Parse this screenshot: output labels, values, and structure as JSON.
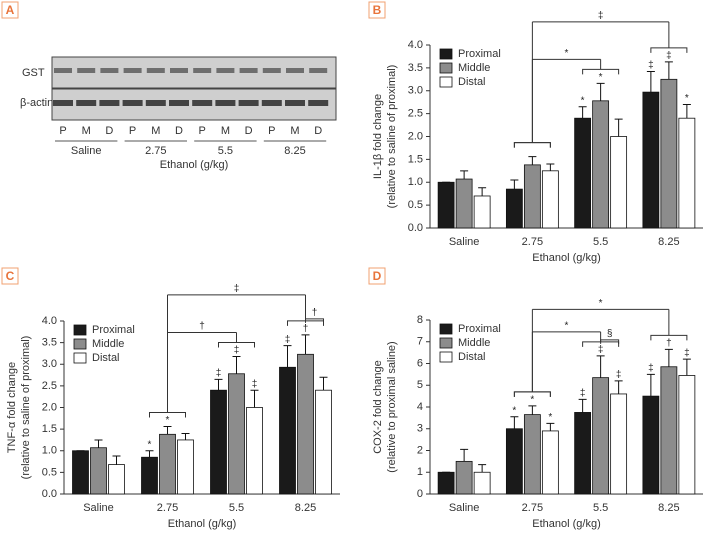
{
  "blot": {
    "panel": "A",
    "rows": [
      "GST",
      "β-actin"
    ],
    "lanes": [
      "P",
      "M",
      "D",
      "P",
      "M",
      "D",
      "P",
      "M",
      "D",
      "P",
      "M",
      "D"
    ],
    "groups": [
      "Saline",
      "2.75",
      "5.5",
      "8.25"
    ],
    "xlabel": "Ethanol (g/kg)"
  },
  "chart_data": [
    {
      "type": "bar",
      "panel": "B",
      "ylabel": [
        "IL-1β fold change",
        "(relative to saline of proximal)"
      ],
      "xlabel": "Ethanol (g/kg)",
      "categories": [
        "Saline",
        "2.75",
        "5.5",
        "8.25"
      ],
      "legend": "upper left",
      "ylim": [
        0,
        4
      ],
      "yticks": [
        {
          "value": 0,
          "label": "0.0"
        },
        0.5,
        {
          "value": 1,
          "label": "1.0"
        },
        1.5,
        {
          "value": 2,
          "label": "2.0"
        },
        2.5,
        {
          "value": 3,
          "label": "3.0"
        },
        3.5,
        {
          "value": 4,
          "label": "4.0"
        }
      ],
      "series": [
        {
          "name": "Proximal",
          "color": "#1a1a1a",
          "values": [
            1.0,
            0.85,
            2.4,
            2.97
          ],
          "errors": [
            0,
            0.2,
            0.25,
            0.45
          ],
          "annotations": [
            null,
            null,
            "*",
            "‡"
          ]
        },
        {
          "name": "Middle",
          "color": "#8c8c8c",
          "values": [
            1.07,
            1.38,
            2.78,
            3.25
          ],
          "errors": [
            0.18,
            0.18,
            0.38,
            0.38
          ],
          "annotations": [
            null,
            null,
            "*",
            "‡"
          ]
        },
        {
          "name": "Distal",
          "color": "#ffffff",
          "values": [
            0.7,
            1.25,
            2.0,
            2.4
          ],
          "errors": [
            0.18,
            0.15,
            0.38,
            0.3
          ],
          "annotations": [
            null,
            null,
            null,
            "*"
          ]
        }
      ],
      "brackets": [
        {
          "label": "*",
          "from": "2.75",
          "to": "5.5"
        },
        {
          "label": "‡",
          "from": "2.75",
          "to": "8.25"
        }
      ],
      "within": []
    },
    {
      "type": "bar",
      "panel": "C",
      "ylabel": [
        "TNF-α fold change",
        "(relative to saline of proximal)"
      ],
      "xlabel": "Ethanol (g/kg)",
      "categories": [
        "Saline",
        "2.75",
        "5.5",
        "8.25"
      ],
      "legend": "upper left",
      "ylim": [
        0,
        4
      ],
      "yticks": [
        {
          "value": 0,
          "label": "0.0"
        },
        0.5,
        {
          "value": 1,
          "label": "1.0"
        },
        1.5,
        {
          "value": 2,
          "label": "2.0"
        },
        2.5,
        {
          "value": 3,
          "label": "3.0"
        },
        3.5,
        {
          "value": 4,
          "label": "4.0"
        }
      ],
      "series": [
        {
          "name": "Proximal",
          "color": "#1a1a1a",
          "values": [
            1.0,
            0.85,
            2.4,
            2.93
          ],
          "errors": [
            0,
            0.15,
            0.25,
            0.5
          ],
          "annotations": [
            null,
            "*",
            "‡",
            "‡"
          ]
        },
        {
          "name": "Middle",
          "color": "#8c8c8c",
          "values": [
            1.07,
            1.38,
            2.78,
            3.23
          ],
          "errors": [
            0.18,
            0.18,
            0.4,
            0.45
          ],
          "annotations": [
            null,
            "*",
            "‡",
            "†"
          ]
        },
        {
          "name": "Distal",
          "color": "#ffffff",
          "values": [
            0.68,
            1.25,
            2.0,
            2.4
          ],
          "errors": [
            0.2,
            0.15,
            0.4,
            0.3
          ],
          "annotations": [
            null,
            null,
            "‡",
            null
          ]
        }
      ],
      "brackets": [
        {
          "label": "†",
          "from": "2.75",
          "to": "5.5"
        },
        {
          "label": "‡",
          "from": "2.75",
          "to": "8.25"
        }
      ],
      "within": [
        {
          "label": "†",
          "category": "8.25",
          "from": "Middle",
          "to": "Distal"
        }
      ]
    },
    {
      "type": "bar",
      "panel": "D",
      "ylabel": [
        "COX-2 fold change",
        "(relative to proximal saline)"
      ],
      "xlabel": "Ethanol (g/kg)",
      "categories": [
        "Saline",
        "2.75",
        "5.5",
        "8.25"
      ],
      "legend": "upper left",
      "ylim": [
        0,
        8
      ],
      "yticks": [
        0,
        1,
        2,
        3,
        4,
        5,
        6,
        7,
        8
      ],
      "series": [
        {
          "name": "Proximal",
          "color": "#1a1a1a",
          "values": [
            1.0,
            3.0,
            3.75,
            4.5
          ],
          "errors": [
            0,
            0.55,
            0.6,
            1.0
          ],
          "annotations": [
            null,
            "*",
            "‡",
            "‡"
          ]
        },
        {
          "name": "Middle",
          "color": "#8c8c8c",
          "values": [
            1.5,
            3.65,
            5.35,
            5.85
          ],
          "errors": [
            0.55,
            0.4,
            1.0,
            0.8
          ],
          "annotations": [
            null,
            "*",
            "‡",
            "†"
          ]
        },
        {
          "name": "Distal",
          "color": "#ffffff",
          "values": [
            1.0,
            2.9,
            4.6,
            5.45
          ],
          "errors": [
            0.35,
            0.35,
            0.6,
            0.75
          ],
          "annotations": [
            null,
            "*",
            "‡",
            "‡"
          ]
        }
      ],
      "brackets": [
        {
          "label": "*",
          "from": "2.75",
          "to": "5.5"
        },
        {
          "label": "*",
          "from": "2.75",
          "to": "8.25"
        }
      ],
      "within": [
        {
          "label": "§",
          "category": "5.5",
          "from": "Middle",
          "to": "Distal"
        }
      ]
    }
  ]
}
